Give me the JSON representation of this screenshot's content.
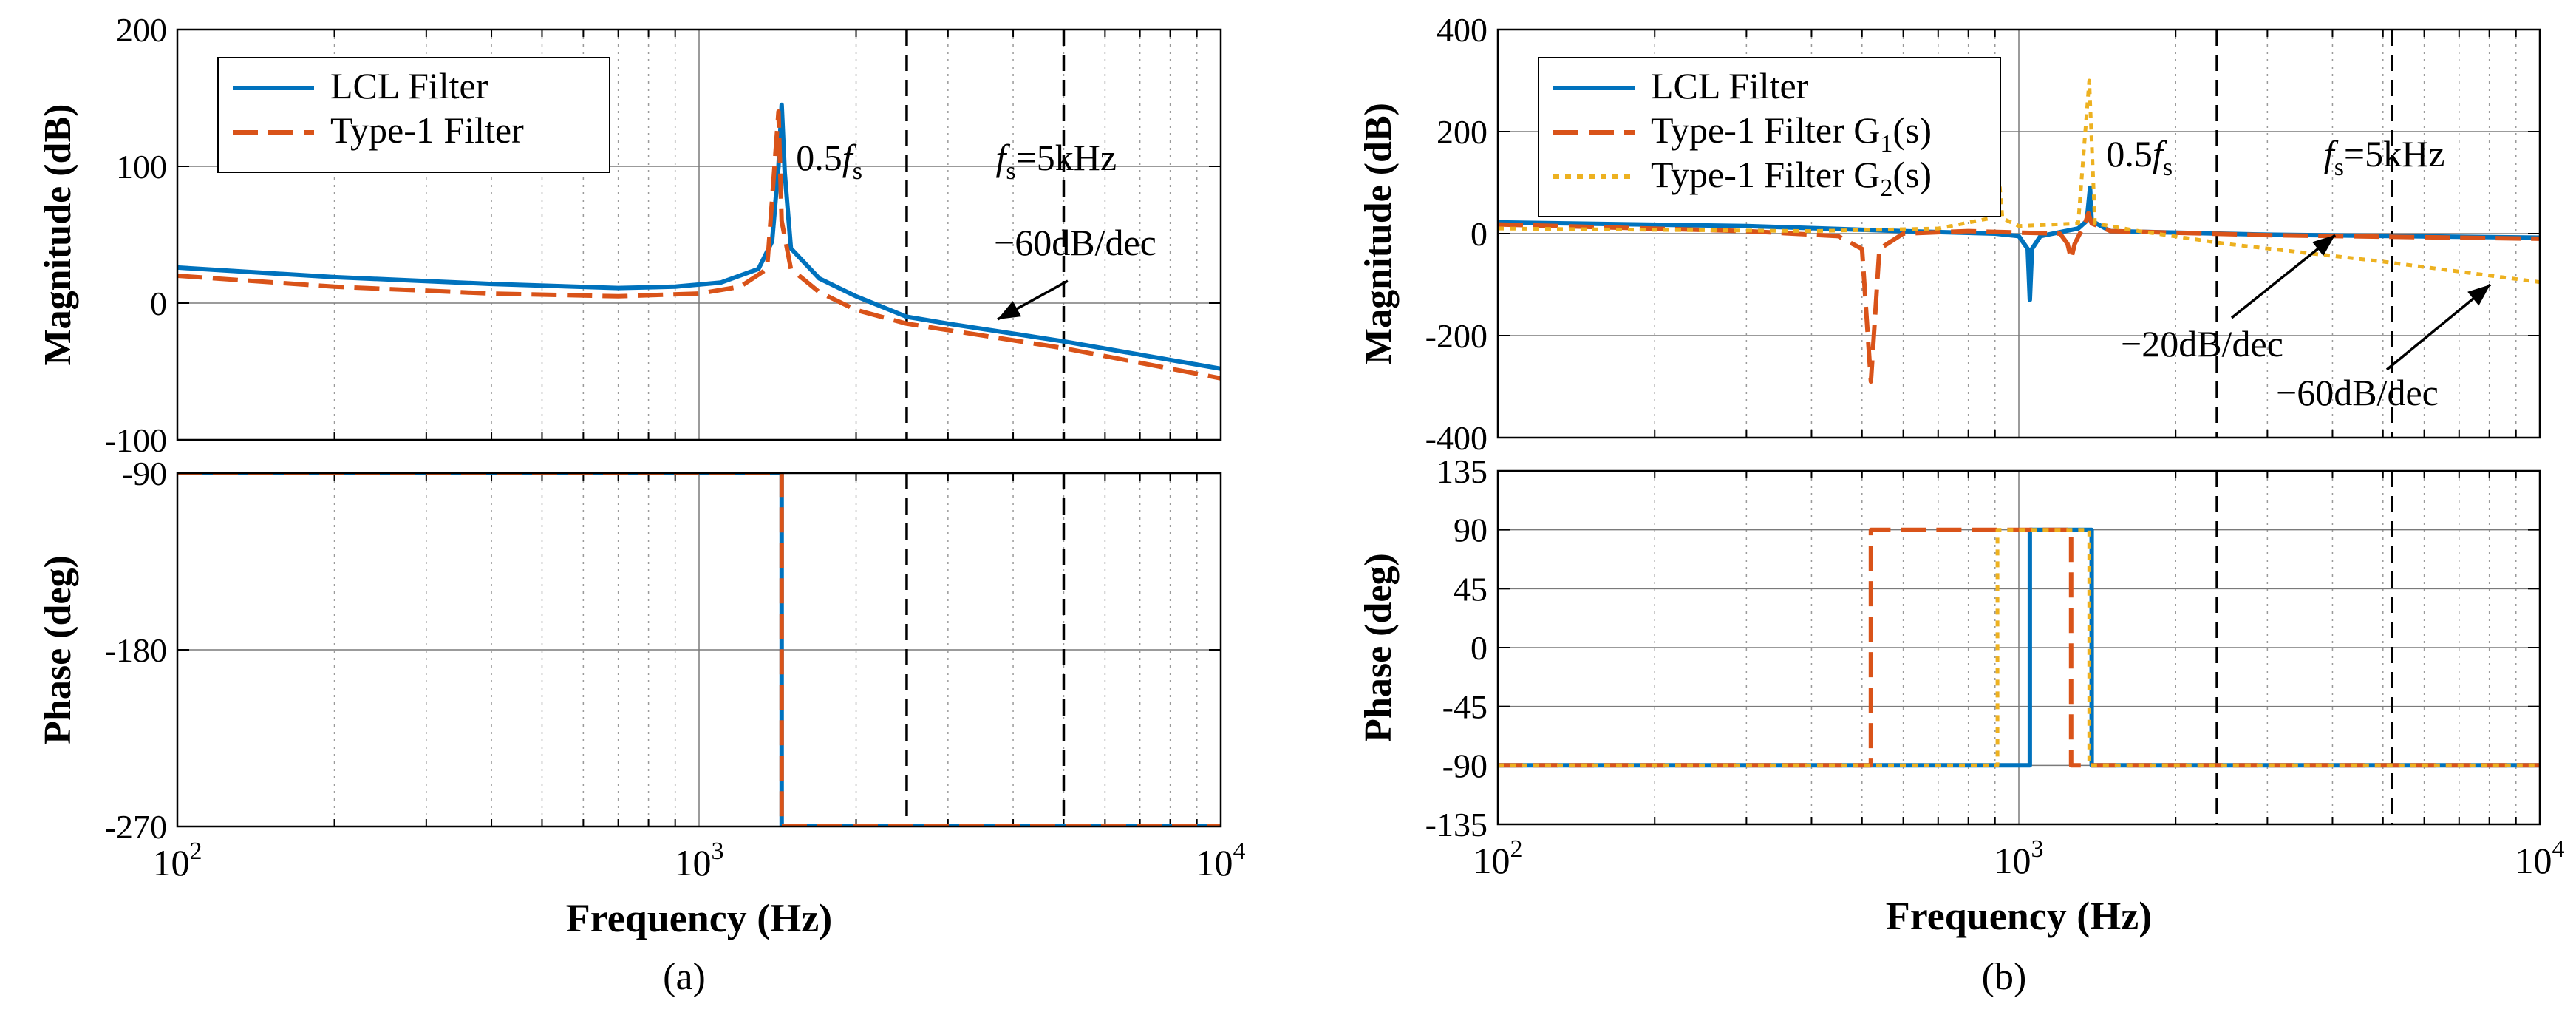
{
  "colors": {
    "lcl": "#0072BD",
    "type1": "#D95319",
    "type1g2": "#EDB120",
    "grid": "#888888",
    "axis": "#000000"
  },
  "chart_data": [
    {
      "id": "a",
      "type": "line",
      "subplot": "magnitude",
      "caption": "(a)",
      "xscale": "log",
      "xlim": [
        100,
        10000
      ],
      "xticks": [
        {
          "v": 100,
          "base": "10",
          "exp": "2"
        },
        {
          "v": 1000,
          "base": "10",
          "exp": "3"
        },
        {
          "v": 10000,
          "base": "10",
          "exp": "4"
        }
      ],
      "ylim": [
        -100,
        200
      ],
      "yticks": [
        {
          "v": 200,
          "label": "200"
        },
        {
          "v": 100,
          "label": "100"
        },
        {
          "v": 0,
          "label": "0"
        },
        {
          "v": -100,
          "label": "-100"
        }
      ],
      "ylabel": "Magnitude (dB)",
      "legend": {
        "position": "top-left",
        "entries": [
          {
            "label": "LCL Filter",
            "color_key": "lcl",
            "style": "solid"
          },
          {
            "label": "Type-1 Filter",
            "color_key": "type1",
            "style": "dashed"
          }
        ]
      },
      "vlines": [
        {
          "x": 2500,
          "label_main": "0.5",
          "label_f": "f",
          "label_sub": "s",
          "label_rest": ""
        },
        {
          "x": 5000,
          "label_main": "",
          "label_f": "f",
          "label_sub": "s",
          "label_rest": "=5kHz"
        }
      ],
      "annotations": [
        {
          "text": "−60dB/dec",
          "x": 3500,
          "y": -15
        }
      ],
      "series": [
        {
          "name": "LCL Filter",
          "color_key": "lcl",
          "style": "solid",
          "points": [
            [
              100,
              26
            ],
            [
              200,
              19
            ],
            [
              400,
              14
            ],
            [
              700,
              11
            ],
            [
              900,
              12
            ],
            [
              1100,
              15
            ],
            [
              1300,
              25
            ],
            [
              1380,
              45
            ],
            [
              1420,
              100
            ],
            [
              1440,
              145
            ],
            [
              1460,
              95
            ],
            [
              1500,
              40
            ],
            [
              1700,
              18
            ],
            [
              2000,
              5
            ],
            [
              2500,
              -10
            ],
            [
              3000,
              -15
            ],
            [
              5000,
              -28
            ],
            [
              10000,
              -48
            ]
          ]
        },
        {
          "name": "Type-1 Filter",
          "color_key": "type1",
          "style": "dashed",
          "points": [
            [
              100,
              20
            ],
            [
              200,
              12
            ],
            [
              400,
              7
            ],
            [
              700,
              5
            ],
            [
              1000,
              7
            ],
            [
              1200,
              12
            ],
            [
              1350,
              25
            ],
            [
              1420,
              140
            ],
            [
              1440,
              60
            ],
            [
              1500,
              25
            ],
            [
              1700,
              8
            ],
            [
              2000,
              -5
            ],
            [
              2500,
              -15
            ],
            [
              5000,
              -33
            ],
            [
              10000,
              -55
            ]
          ]
        }
      ]
    },
    {
      "id": "a-phase",
      "type": "line",
      "subplot": "phase",
      "xscale": "log",
      "xlim": [
        100,
        10000
      ],
      "xticks": [
        {
          "v": 100,
          "base": "10",
          "exp": "2"
        },
        {
          "v": 1000,
          "base": "10",
          "exp": "3"
        },
        {
          "v": 10000,
          "base": "10",
          "exp": "4"
        }
      ],
      "ylim": [
        -270,
        -90
      ],
      "yticks": [
        {
          "v": -90,
          "label": "-90"
        },
        {
          "v": -180,
          "label": "-180"
        },
        {
          "v": -270,
          "label": "-270"
        }
      ],
      "xlabel": "Frequency (Hz)",
      "ylabel": "Phase (deg)",
      "vlines": [
        {
          "x": 2500
        },
        {
          "x": 5000
        }
      ],
      "series": [
        {
          "name": "LCL Filter",
          "color_key": "lcl",
          "style": "solid",
          "points": [
            [
              100,
              -90
            ],
            [
              1440,
              -90
            ],
            [
              1440,
              -270
            ],
            [
              10000,
              -270
            ]
          ]
        },
        {
          "name": "Type-1 Filter",
          "color_key": "type1",
          "style": "dashed",
          "points": [
            [
              100,
              -90
            ],
            [
              1440,
              -90
            ],
            [
              1440,
              -270
            ],
            [
              10000,
              -270
            ]
          ]
        }
      ]
    },
    {
      "id": "b",
      "type": "line",
      "subplot": "magnitude",
      "caption": "(b)",
      "xscale": "log",
      "xlim": [
        100,
        10000
      ],
      "xticks": [
        {
          "v": 100,
          "base": "10",
          "exp": "2"
        },
        {
          "v": 1000,
          "base": "10",
          "exp": "3"
        },
        {
          "v": 10000,
          "base": "10",
          "exp": "4"
        }
      ],
      "ylim": [
        -400,
        400
      ],
      "yticks": [
        {
          "v": 400,
          "label": "400"
        },
        {
          "v": 200,
          "label": "200"
        },
        {
          "v": 0,
          "label": "0"
        },
        {
          "v": -200,
          "label": "-200"
        },
        {
          "v": -400,
          "label": "-400"
        }
      ],
      "ylabel": "Magnitude (dB)",
      "legend": {
        "position": "top-left",
        "entries": [
          {
            "label": "LCL Filter",
            "label_sub": "",
            "label_end": "",
            "color_key": "lcl",
            "style": "solid"
          },
          {
            "label": "Type-1 Filter G",
            "label_sub": "1",
            "label_end": "(s)",
            "color_key": "type1",
            "style": "dashed"
          },
          {
            "label": "Type-1 Filter G",
            "label_sub": "2",
            "label_end": "(s)",
            "color_key": "type1g2",
            "style": "dotted"
          }
        ]
      },
      "vlines": [
        {
          "x": 2400,
          "label_main": "0.5",
          "label_f": "f",
          "label_sub": "s",
          "label_rest": ""
        },
        {
          "x": 5200,
          "label_main": "",
          "label_f": "f",
          "label_sub": "s",
          "label_rest": "=5kHz"
        }
      ],
      "annotations": [
        {
          "text": "−20dB/dec",
          "x": 2600,
          "y": -225
        },
        {
          "text": "−60dB/dec",
          "x": 4000,
          "y": -320
        }
      ],
      "series": [
        {
          "name": "LCL Filter",
          "color_key": "lcl",
          "style": "solid",
          "points": [
            [
              100,
              22
            ],
            [
              300,
              15
            ],
            [
              600,
              5
            ],
            [
              900,
              0
            ],
            [
              1000,
              -5
            ],
            [
              1040,
              -30
            ],
            [
              1050,
              -130
            ],
            [
              1060,
              -30
            ],
            [
              1100,
              -5
            ],
            [
              1300,
              10
            ],
            [
              1350,
              25
            ],
            [
              1370,
              90
            ],
            [
              1380,
              25
            ],
            [
              1500,
              5
            ],
            [
              3000,
              -2
            ],
            [
              10000,
              -8
            ]
          ]
        },
        {
          "name": "Type-1 Filter G1(s)",
          "color_key": "type1",
          "style": "dashed",
          "points": [
            [
              100,
              18
            ],
            [
              300,
              5
            ],
            [
              450,
              -5
            ],
            [
              500,
              -30
            ],
            [
              520,
              -290
            ],
            [
              540,
              -30
            ],
            [
              600,
              0
            ],
            [
              800,
              5
            ],
            [
              1000,
              2
            ],
            [
              1200,
              0
            ],
            [
              1240,
              -20
            ],
            [
              1260,
              -50
            ],
            [
              1280,
              -20
            ],
            [
              1340,
              20
            ],
            [
              1360,
              40
            ],
            [
              1380,
              20
            ],
            [
              1500,
              5
            ],
            [
              3000,
              -3
            ],
            [
              10000,
              -10
            ]
          ]
        },
        {
          "name": "Type-1 Filter G2(s)",
          "color_key": "type1g2",
          "style": "dotted",
          "points": [
            [
              100,
              10
            ],
            [
              400,
              5
            ],
            [
              700,
              10
            ],
            [
              880,
              30
            ],
            [
              910,
              145
            ],
            [
              930,
              30
            ],
            [
              1000,
              15
            ],
            [
              1300,
              20
            ],
            [
              1365,
              300
            ],
            [
              1400,
              20
            ],
            [
              1700,
              5
            ],
            [
              2500,
              -20
            ],
            [
              5000,
              -55
            ],
            [
              10000,
              -95
            ]
          ]
        }
      ]
    },
    {
      "id": "b-phase",
      "type": "line",
      "subplot": "phase",
      "xscale": "log",
      "xlim": [
        100,
        10000
      ],
      "xticks": [
        {
          "v": 100,
          "base": "10",
          "exp": "2"
        },
        {
          "v": 1000,
          "base": "10",
          "exp": "3"
        },
        {
          "v": 10000,
          "base": "10",
          "exp": "4"
        }
      ],
      "ylim": [
        -135,
        135
      ],
      "yticks": [
        {
          "v": 135,
          "label": "135"
        },
        {
          "v": 90,
          "label": "90"
        },
        {
          "v": 45,
          "label": "45"
        },
        {
          "v": 0,
          "label": "0"
        },
        {
          "v": -45,
          "label": "-45"
        },
        {
          "v": -90,
          "label": "-90"
        },
        {
          "v": -135,
          "label": "-135"
        }
      ],
      "xlabel": "Frequency (Hz)",
      "ylabel": "Phase (deg)",
      "vlines": [
        {
          "x": 2400
        },
        {
          "x": 5200
        }
      ],
      "series": [
        {
          "name": "LCL Filter",
          "color_key": "lcl",
          "style": "solid",
          "points": [
            [
              100,
              -90
            ],
            [
              1050,
              -90
            ],
            [
              1050,
              90
            ],
            [
              1380,
              90
            ],
            [
              1380,
              -90
            ],
            [
              10000,
              -90
            ]
          ]
        },
        {
          "name": "Type-1 Filter G1(s)",
          "color_key": "type1",
          "style": "dashed",
          "points": [
            [
              100,
              -90
            ],
            [
              520,
              -90
            ],
            [
              520,
              90
            ],
            [
              1260,
              90
            ],
            [
              1260,
              -90
            ],
            [
              10000,
              -90
            ]
          ]
        },
        {
          "name": "Type-1 Filter G2(s)",
          "color_key": "type1g2",
          "style": "dotted",
          "points": [
            [
              100,
              -90
            ],
            [
              910,
              -90
            ],
            [
              910,
              90
            ],
            [
              1365,
              90
            ],
            [
              1365,
              -90
            ],
            [
              10000,
              -90
            ]
          ]
        }
      ]
    }
  ]
}
